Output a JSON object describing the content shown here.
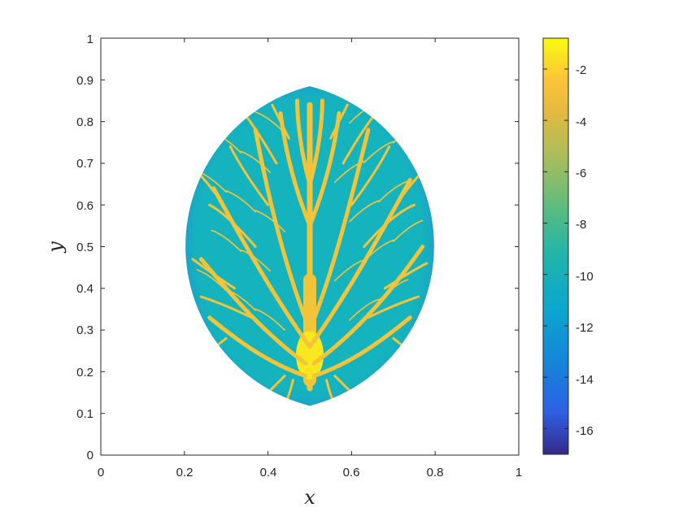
{
  "chart_data": {
    "type": "heatmap",
    "title": "",
    "xlabel": "x",
    "ylabel": "y",
    "xlim": [
      0,
      1
    ],
    "ylim": [
      0,
      1
    ],
    "xticks": [
      "0",
      "0.2",
      "0.4",
      "0.6",
      "0.8",
      "1"
    ],
    "yticks": [
      "0",
      "0.1",
      "0.2",
      "0.3",
      "0.4",
      "0.5",
      "0.6",
      "0.7",
      "0.8",
      "0.9",
      "1"
    ],
    "colorbar": {
      "colormap": "parula",
      "range": [
        -17,
        -0.8
      ],
      "ticks": [
        "-2",
        "-4",
        "-6",
        "-8",
        "-10",
        "-12",
        "-14",
        "-16"
      ]
    },
    "domain_shape": {
      "description": "leaf-shaped region bounded by two circular arcs",
      "tip_top": [
        0.5,
        0.885
      ],
      "tip_bottom": [
        0.5,
        0.118
      ],
      "x_extent": [
        0.205,
        0.8
      ],
      "background_value": -9.5,
      "edge_value": -13
    },
    "vein_pattern": {
      "trunk": {
        "x": 0.5,
        "y_range": [
          0.16,
          0.85
        ],
        "value": -2.5
      },
      "base_blob": {
        "center": [
          0.5,
          0.24
        ],
        "value": -1.5
      },
      "vein_value": -2.8
    },
    "colors": {
      "c_low": "#352a87",
      "c_mid": "#0fb2c6",
      "c_high": "#f9fb0e"
    }
  }
}
